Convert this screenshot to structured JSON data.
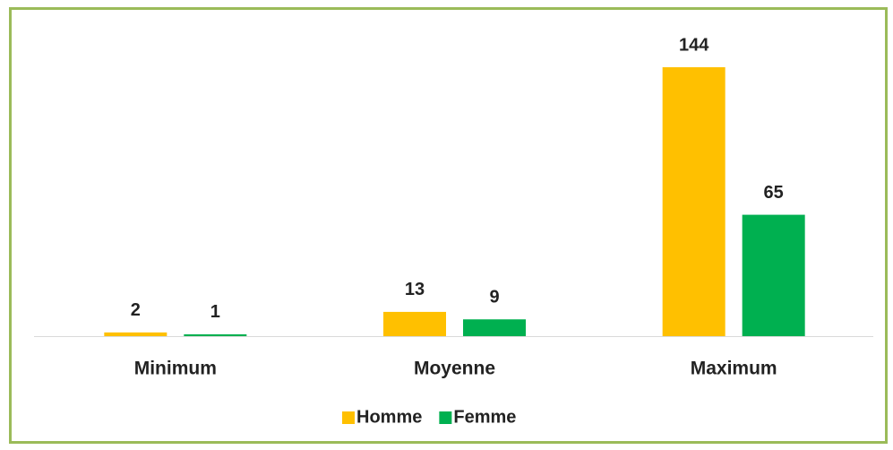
{
  "chart_data": {
    "type": "bar",
    "categories": [
      "Minimum",
      "Moyenne",
      "Maximum"
    ],
    "series": [
      {
        "name": "Homme",
        "color": "#ffc000",
        "values": [
          2,
          13,
          144
        ]
      },
      {
        "name": "Femme",
        "color": "#00b050",
        "values": [
          1,
          9,
          65
        ]
      }
    ],
    "legend": "bottom"
  }
}
